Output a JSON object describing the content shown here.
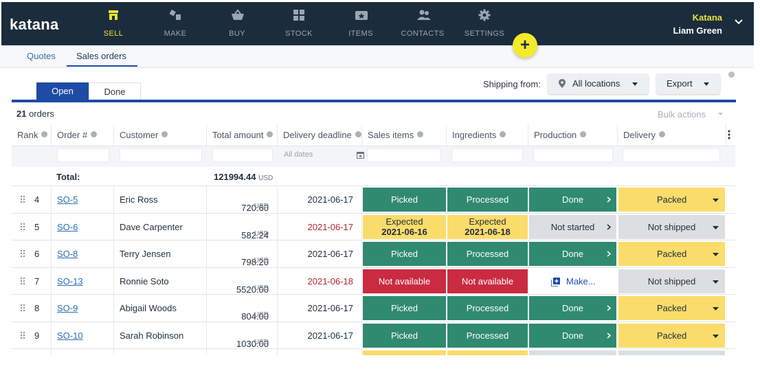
{
  "app": {
    "logo": "katana",
    "nav": [
      {
        "label": "SELL",
        "icon": "shop-icon",
        "active": true
      },
      {
        "label": "MAKE",
        "icon": "make-icon",
        "active": false
      },
      {
        "label": "BUY",
        "icon": "basket-icon",
        "active": false
      },
      {
        "label": "STOCK",
        "icon": "stock-icon",
        "active": false
      },
      {
        "label": "ITEMS",
        "icon": "items-icon",
        "active": false
      },
      {
        "label": "CONTACTS",
        "icon": "contacts-icon",
        "active": false
      },
      {
        "label": "SETTINGS",
        "icon": "gear-icon",
        "active": false
      }
    ],
    "user": {
      "company": "Katana",
      "name": "Liam Green"
    },
    "fab": "+"
  },
  "subtabs": {
    "quotes": "Quotes",
    "sales_orders": "Sales orders"
  },
  "status_tabs": {
    "open": "Open",
    "done": "Done"
  },
  "toolbar": {
    "shipping_label": "Shipping from:",
    "location": "All locations",
    "export": "Export",
    "orders_count": "21",
    "orders_suffix": " orders",
    "bulk_actions": "Bulk actions"
  },
  "table": {
    "headers": {
      "rank": "Rank",
      "order": "Order #",
      "customer": "Customer",
      "total": "Total amount",
      "deadline": "Delivery deadline",
      "sales_items": "Sales items",
      "ingredients": "Ingredients",
      "production": "Production",
      "delivery": "Delivery"
    },
    "filter_dates_placeholder": "All dates",
    "total_label": "Total:",
    "total_value": "121994.44",
    "currency": "USD",
    "rows": [
      {
        "rank": "4",
        "order": "SO-5",
        "customer": "Eric Ross",
        "total": "720.60",
        "deadline": "2021-06-17",
        "sales": "Picked",
        "ingredients": "Processed",
        "production": "Done",
        "delivery": "Packed"
      },
      {
        "rank": "5",
        "order": "SO-6",
        "customer": "Dave Carpenter",
        "total": "582.24",
        "deadline": "2021-06-17",
        "sales_top": "Expected",
        "sales_date": "2021-06-16",
        "ing_top": "Expected",
        "ing_date": "2021-06-18",
        "production": "Not started",
        "delivery": "Not shipped"
      },
      {
        "rank": "6",
        "order": "SO-8",
        "customer": "Terry Jensen",
        "total": "798.20",
        "deadline": "2021-06-17",
        "sales": "Picked",
        "ingredients": "Processed",
        "production": "Done",
        "delivery": "Packed"
      },
      {
        "rank": "7",
        "order": "SO-13",
        "customer": "Ronnie Soto",
        "total": "5520.00",
        "deadline": "2021-06-18",
        "sales": "Not available",
        "ingredients": "Not available",
        "production": "Make...",
        "delivery": "Not shipped"
      },
      {
        "rank": "8",
        "order": "SO-9",
        "customer": "Abigail Woods",
        "total": "804.00",
        "deadline": "2021-06-17",
        "sales": "Picked",
        "ingredients": "Processed",
        "production": "Done",
        "delivery": "Packed"
      },
      {
        "rank": "9",
        "order": "SO-10",
        "customer": "Sarah Robinson",
        "total": "1030.00",
        "deadline": "2021-06-17",
        "sales": "Picked",
        "ingredients": "Processed",
        "production": "Done",
        "delivery": "Packed"
      }
    ]
  },
  "colors": {
    "nav_bg": "#1b2d3c",
    "accent_yellow": "#e8e43a",
    "primary_blue": "#1d4ba6",
    "status_green": "#2f8a6f",
    "status_red": "#c92b41",
    "status_yellow": "#fadc6a",
    "status_grey": "#dcdfe2"
  }
}
